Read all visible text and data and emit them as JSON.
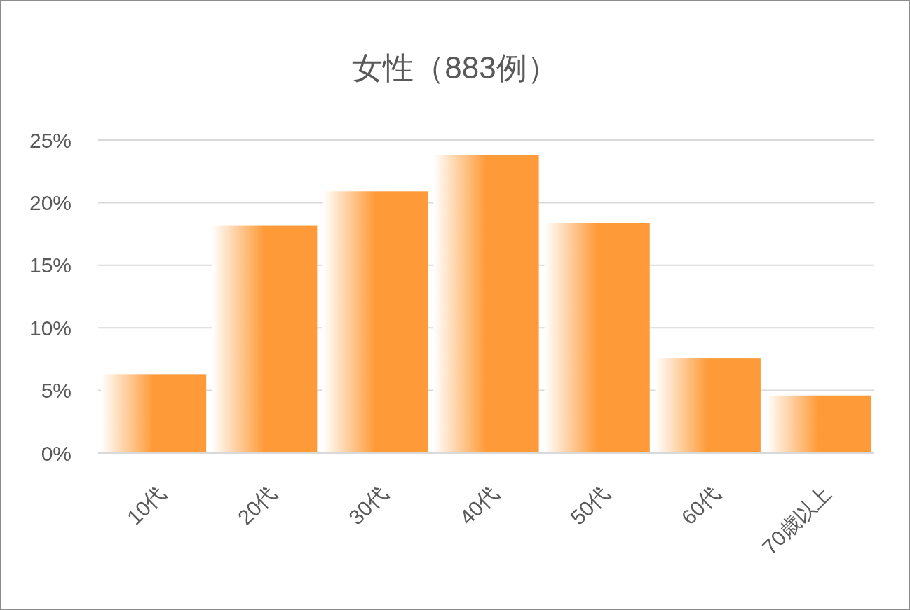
{
  "chart_data": {
    "type": "bar",
    "title": "女性（883例）",
    "categories": [
      "10代",
      "20代",
      "30代",
      "40代",
      "50代",
      "60代",
      "70歳以上"
    ],
    "values": [
      6.3,
      18.2,
      20.9,
      23.8,
      18.4,
      7.6,
      4.6
    ],
    "color": "#fe9a37",
    "ylim": [
      0,
      25
    ],
    "yticks": [
      {
        "value": 0,
        "label": "0%"
      },
      {
        "value": 5,
        "label": "5%"
      },
      {
        "value": 10,
        "label": "10%"
      },
      {
        "value": 15,
        "label": "15%"
      },
      {
        "value": 20,
        "label": "20%"
      },
      {
        "value": 25,
        "label": "25%"
      }
    ],
    "grid": "y"
  }
}
